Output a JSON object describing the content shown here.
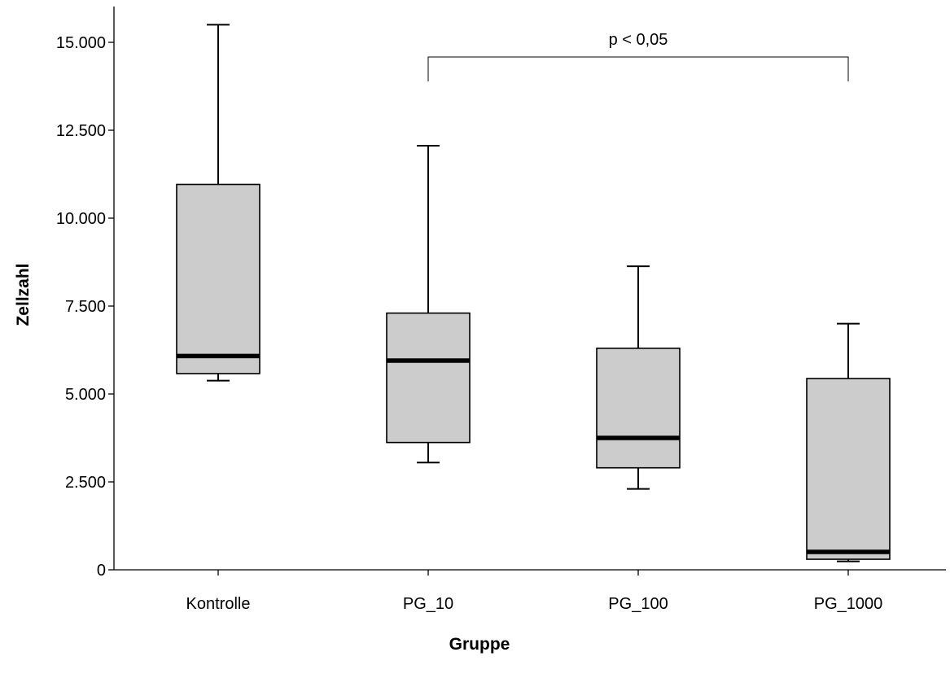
{
  "chart_data": {
    "type": "boxplot",
    "xlabel": "Gruppe",
    "ylabel": "Zellzahl",
    "ylim": [
      0,
      15500
    ],
    "yticks": [
      {
        "value": 0,
        "label": "0"
      },
      {
        "value": 2500,
        "label": "2.500"
      },
      {
        "value": 5000,
        "label": "5.000"
      },
      {
        "value": 7500,
        "label": "7.500"
      },
      {
        "value": 10000,
        "label": "10.000"
      },
      {
        "value": 12500,
        "label": "12.500"
      },
      {
        "value": 15000,
        "label": "15.000"
      }
    ],
    "categories": [
      "Kontrolle",
      "PG_10",
      "PG_100",
      "PG_1000"
    ],
    "boxes": [
      {
        "category": "Kontrolle",
        "min": 5380,
        "q1": 5580,
        "median": 6080,
        "q3": 10960,
        "max": 15500
      },
      {
        "category": "PG_10",
        "min": 3050,
        "q1": 3620,
        "median": 5950,
        "q3": 7300,
        "max": 12060
      },
      {
        "category": "PG_100",
        "min": 2300,
        "q1": 2900,
        "median": 3750,
        "q3": 6300,
        "max": 8630
      },
      {
        "category": "PG_1000",
        "min": 240,
        "q1": 300,
        "median": 510,
        "q3": 5440,
        "max": 7000
      }
    ],
    "grid": false,
    "annotations": [
      {
        "type": "significance-bracket",
        "from": "PG_10",
        "to": "PG_1000",
        "text": "p < 0,05"
      }
    ],
    "colors": {
      "box_fill": "#cccccc",
      "stroke": "#000000"
    }
  }
}
